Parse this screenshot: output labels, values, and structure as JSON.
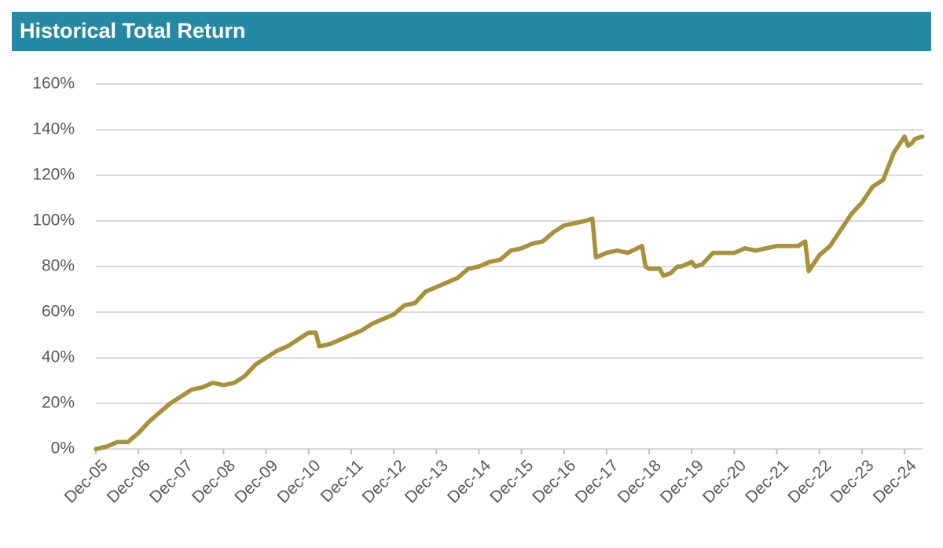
{
  "chart_data": {
    "type": "line",
    "title": "Historical Total Return",
    "x": [
      "Dec-05",
      "Mar-06",
      "Jun-06",
      "Sep-06",
      "Dec-06",
      "Mar-07",
      "Jun-07",
      "Sep-07",
      "Dec-07",
      "Mar-08",
      "Jun-08",
      "Sep-08",
      "Dec-08",
      "Mar-09",
      "Jun-09",
      "Sep-09",
      "Dec-09",
      "Mar-10",
      "Jun-10",
      "Sep-10",
      "Dec-10",
      "Feb-11",
      "Mar-11",
      "Jun-11",
      "Sep-11",
      "Dec-11",
      "Mar-12",
      "Jun-12",
      "Sep-12",
      "Dec-12",
      "Mar-13",
      "Jun-13",
      "Sep-13",
      "Dec-13",
      "Mar-14",
      "Jun-14",
      "Sep-14",
      "Dec-14",
      "Mar-15",
      "Jun-15",
      "Sep-15",
      "Dec-15",
      "Mar-16",
      "Jun-16",
      "Sep-16",
      "Dec-16",
      "Mar-17",
      "Jun-17",
      "Aug-17",
      "Sep-17",
      "Dec-17",
      "Mar-18",
      "Jun-18",
      "Oct-18",
      "Nov-18",
      "Dec-18",
      "Mar-19",
      "Apr-19",
      "Jun-19",
      "Aug-19",
      "Sep-19",
      "Dec-19",
      "Jan-20",
      "Mar-20",
      "Jun-20",
      "Sep-20",
      "Dec-20",
      "Mar-21",
      "Jun-21",
      "Sep-21",
      "Dec-21",
      "Mar-22",
      "Jun-22",
      "Aug-22",
      "Sep-22",
      "Dec-22",
      "Mar-23",
      "Jun-23",
      "Sep-23",
      "Dec-23",
      "Mar-24",
      "Jun-24",
      "Sep-24",
      "Dec-24",
      "Jan-25",
      "Feb-25",
      "Mar-25",
      "May-25"
    ],
    "series": [
      {
        "name": "Total Return",
        "color": "#a8913a",
        "values": [
          0,
          1,
          3,
          3,
          7,
          12,
          16,
          20,
          23,
          26,
          27,
          29,
          28,
          29,
          32,
          37,
          40,
          43,
          45,
          48,
          51,
          51,
          45,
          46,
          48,
          50,
          52,
          55,
          57,
          59,
          63,
          64,
          69,
          71,
          73,
          75,
          79,
          80,
          82,
          83,
          87,
          88,
          90,
          91,
          95,
          98,
          99,
          100,
          101,
          84,
          86,
          87,
          86,
          89,
          80,
          79,
          79,
          76,
          77,
          80,
          80,
          82,
          80,
          81,
          86,
          86,
          86,
          88,
          87,
          88,
          89,
          89,
          89,
          91,
          78,
          85,
          89,
          96,
          103,
          108,
          115,
          118,
          130,
          137,
          133,
          134,
          136,
          137
        ]
      }
    ],
    "xticks": [
      "Dec-05",
      "Dec-06",
      "Dec-07",
      "Dec-08",
      "Dec-09",
      "Dec-10",
      "Dec-11",
      "Dec-12",
      "Dec-13",
      "Dec-14",
      "Dec-15",
      "Dec-16",
      "Dec-17",
      "Dec-18",
      "Dec-19",
      "Dec-20",
      "Dec-21",
      "Dec-22",
      "Dec-23",
      "Dec-24"
    ],
    "ylim": [
      0,
      160
    ],
    "yticks": [
      {
        "value": 0,
        "label": "0%"
      },
      {
        "value": 20,
        "label": "20%"
      },
      {
        "value": 40,
        "label": "40%"
      },
      {
        "value": 60,
        "label": "60%"
      },
      {
        "value": 80,
        "label": "80%"
      },
      {
        "value": 100,
        "label": "100%"
      },
      {
        "value": 120,
        "label": "120%"
      },
      {
        "value": 140,
        "label": "140%"
      },
      {
        "value": 160,
        "label": "160%"
      }
    ],
    "grid": true
  }
}
